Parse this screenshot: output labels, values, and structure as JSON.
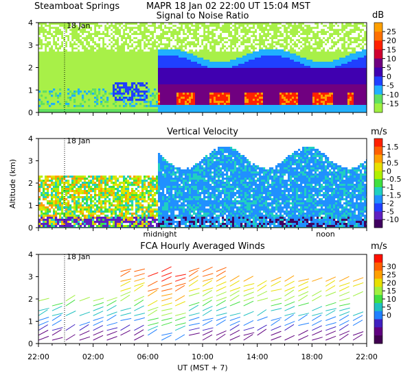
{
  "header": {
    "station": "Steamboat Springs",
    "line": "MAPR 18 Jan 02  22:00 UT  15:04  MST"
  },
  "date_marker": "18 Jan",
  "chart_data": [
    {
      "type": "heatmap",
      "title": "Signal to Noise Ratio",
      "unit": "dB",
      "ylim": [
        0,
        4
      ],
      "yticks": [
        "0",
        "1",
        "2",
        "3",
        "4"
      ],
      "colorbar": {
        "labels": [
          "25",
          "20",
          "15",
          "10",
          "5",
          "0",
          "-5",
          "-10",
          "-15"
        ],
        "colors": [
          "#ffa000",
          "#ff7000",
          "#ff2000",
          "#d00030",
          "#700080",
          "#4000b0",
          "#2040ff",
          "#20b0ff",
          "#60e060",
          "#a0f040"
        ]
      }
    },
    {
      "type": "heatmap",
      "title": "Vertical Velocity",
      "unit": "m/s",
      "ylabel": "Altitude (km)",
      "ylim": [
        0,
        4
      ],
      "yticks": [
        "0",
        "1",
        "2",
        "3",
        "4"
      ],
      "xlabels": [
        "midnight",
        "noon"
      ],
      "colorbar": {
        "labels": [
          "1.5",
          "1",
          "0.5",
          "0",
          "-0.5",
          "-1",
          "-1.5",
          "-2",
          "-5",
          "-10"
        ],
        "colors": [
          "#ff2000",
          "#ff6000",
          "#ffa000",
          "#e8e000",
          "#b0f000",
          "#40e040",
          "#20d0c0",
          "#2090ff",
          "#2040ff",
          "#6020c0",
          "#400060"
        ]
      }
    },
    {
      "type": "scatter",
      "title": "FCA Hourly Averaged Winds",
      "unit": "m/s",
      "ylim": [
        0,
        4
      ],
      "yticks": [
        "0",
        "1",
        "2",
        "3",
        "4"
      ],
      "xticks": [
        "22:00",
        "02:00",
        "06:00",
        "10:00",
        "14:00",
        "18:00",
        "22:00"
      ],
      "xlabel": "UT  (MST + 7)",
      "colorbar": {
        "labels": [
          "30",
          "25",
          "20",
          "15",
          "10",
          "5",
          "0"
        ],
        "colors": [
          "#ff1000",
          "#ff6000",
          "#ffa000",
          "#e8e000",
          "#a0f040",
          "#40e040",
          "#20c0c0",
          "#2080ff",
          "#4020c0",
          "#600080",
          "#400050"
        ]
      }
    }
  ]
}
